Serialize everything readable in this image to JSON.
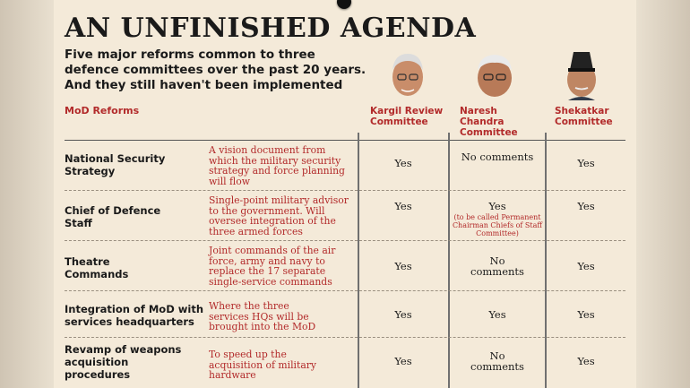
{
  "title": "AN UNFINISHED AGENDA",
  "subtitle": "Five major reforms common to three defence committees over the past 20 years. And they still haven't been implemented",
  "header": {
    "reforms_label": "MoD Reforms",
    "committees": [
      "Kargil Review Committee",
      "Naresh Chandra Committee",
      "Shekatkar Committee"
    ]
  },
  "rows": [
    {
      "name": "National Security Strategy",
      "desc": "A vision document from which the military security strategy and force planning will flow",
      "kargil": "Yes",
      "naresh": "No comments",
      "naresh_note": "",
      "shekatkar": "Yes"
    },
    {
      "name": "Chief of Defence Staff",
      "desc": "Single-point military advisor to the government. Will oversee integration of the three armed forces",
      "kargil": "Yes",
      "naresh": "Yes",
      "naresh_note": "(to be called Permanent Chairman Chiefs of Staff Committee)",
      "shekatkar": "Yes"
    },
    {
      "name": "Theatre Commands",
      "desc": "Joint commands of the air force, army and navy to replace the 17 separate single-service commands",
      "kargil": "Yes",
      "naresh": "No comments",
      "naresh_note": "",
      "shekatkar": "Yes"
    },
    {
      "name": "Integration of MoD with services headquarters",
      "desc": "Where the three services HQs will be brought into the MoD",
      "kargil": "Yes",
      "naresh": "Yes",
      "naresh_note": "",
      "shekatkar": "Yes"
    },
    {
      "name": "Revamp of weapons acquisition procedures",
      "desc": "To speed up the acquisition of military hardware",
      "kargil": "Yes",
      "naresh": "No comments",
      "naresh_note": "",
      "shekatkar": "Yes"
    }
  ]
}
